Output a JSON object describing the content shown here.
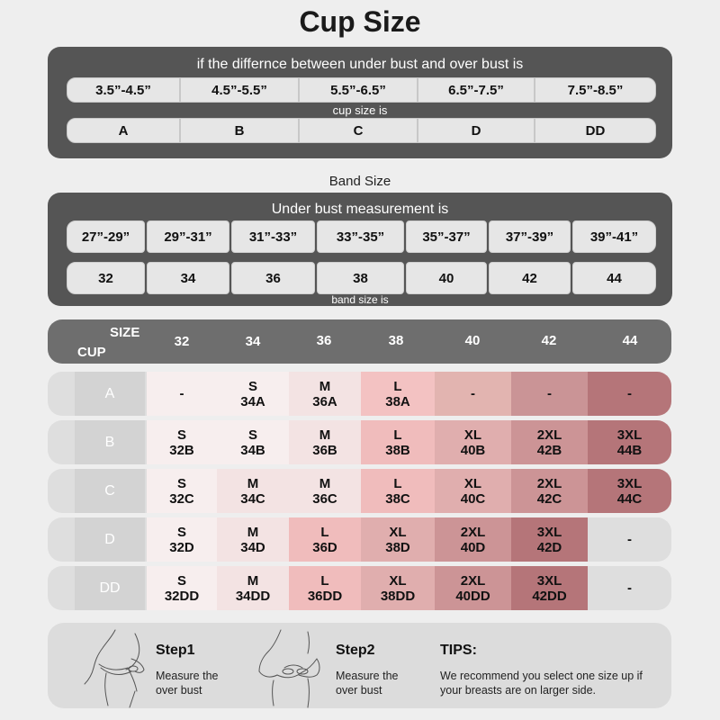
{
  "title": "Cup Size",
  "cup_panel": {
    "heading": "if the differnce between under bust and over bust is",
    "ranges": [
      "3.5”-4.5”",
      "4.5”-5.5”",
      "5.5”-6.5”",
      "6.5”-7.5”",
      "7.5”-8.5”"
    ],
    "middle_label": "cup size is",
    "cups": [
      "A",
      "B",
      "C",
      "D",
      "DD"
    ]
  },
  "band_title": "Band Size",
  "band_panel": {
    "heading": "Under bust measurement is",
    "ranges": [
      "27”-29”",
      "29”-31”",
      "31”-33”",
      "33”-35”",
      "35”-37”",
      "37”-39”",
      "39”-41”"
    ],
    "sizes": [
      "32",
      "34",
      "36",
      "38",
      "40",
      "42",
      "44"
    ],
    "footer_label": "band size is"
  },
  "table": {
    "header_size": "SIZE",
    "header_cup": "CUP",
    "columns": [
      "32",
      "34",
      "36",
      "38",
      "40",
      "42",
      "44"
    ],
    "rows": [
      {
        "cup": "A",
        "cells": [
          [
            "-",
            ""
          ],
          [
            "S",
            "34A"
          ],
          [
            "M",
            "36A"
          ],
          [
            "L",
            "38A"
          ],
          [
            "-",
            ""
          ],
          [
            "-",
            ""
          ],
          [
            "-",
            ""
          ]
        ]
      },
      {
        "cup": "B",
        "cells": [
          [
            "S",
            "32B"
          ],
          [
            "S",
            "34B"
          ],
          [
            "M",
            "36B"
          ],
          [
            "L",
            "38B"
          ],
          [
            "XL",
            "40B"
          ],
          [
            "2XL",
            "42B"
          ],
          [
            "3XL",
            "44B"
          ]
        ]
      },
      {
        "cup": "C",
        "cells": [
          [
            "S",
            "32C"
          ],
          [
            "M",
            "34C"
          ],
          [
            "M",
            "36C"
          ],
          [
            "L",
            "38C"
          ],
          [
            "XL",
            "40C"
          ],
          [
            "2XL",
            "42C"
          ],
          [
            "3XL",
            "44C"
          ]
        ]
      },
      {
        "cup": "D",
        "cells": [
          [
            "S",
            "32D"
          ],
          [
            "M",
            "34D"
          ],
          [
            "L",
            "36D"
          ],
          [
            "XL",
            "38D"
          ],
          [
            "2XL",
            "40D"
          ],
          [
            "3XL",
            "42D"
          ],
          [
            "-",
            ""
          ]
        ]
      },
      {
        "cup": "DD",
        "cells": [
          [
            "S",
            "32DD"
          ],
          [
            "M",
            "34DD"
          ],
          [
            "L",
            "36DD"
          ],
          [
            "XL",
            "38DD"
          ],
          [
            "2XL",
            "40DD"
          ],
          [
            "3XL",
            "42DD"
          ],
          [
            "-",
            ""
          ]
        ]
      }
    ],
    "colors": {
      "S": "#f7eeee",
      "M": "#f3e3e3",
      "L": "#f0bcbc",
      "XL": "#e0aeae",
      "2XL": "#cc9496",
      "3XL": "#b57579",
      "A-38": "#f3c2c2",
      "A-40": "#e2b4b0",
      "A-42": "#ca9496",
      "A-44": "#b57579",
      "empty": "#dedede",
      "A-32": "#f7eeee"
    }
  },
  "steps": {
    "step1_title": "Step1",
    "step1_line1": "Measure the",
    "step1_line2": "over bust",
    "step2_title": "Step2",
    "step2_line1": "Measure the",
    "step2_line2": "over bust",
    "tips_title": "TIPS:",
    "tips_line1": "We recommend you select one size up if",
    "tips_line2": "your breasts are on larger side."
  }
}
